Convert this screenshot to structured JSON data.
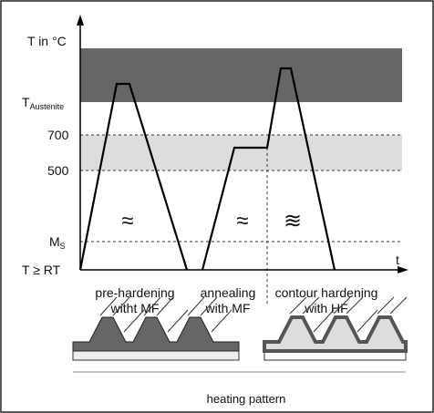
{
  "axis": {
    "y_label": "T in °C",
    "x_label": "t"
  },
  "y_labels": {
    "austenite": {
      "base": "T",
      "sub": "Austenite"
    },
    "t700": "700",
    "t500": "500",
    "ms": {
      "base": "M",
      "sub": "S"
    },
    "rt": "T ≥ RT"
  },
  "symbols": [
    "≈",
    "≈",
    "≋"
  ],
  "phases": [
    {
      "lines": [
        "pre-hardening",
        "witht MF"
      ]
    },
    {
      "lines": [
        "annealing",
        "with MF"
      ]
    },
    {
      "lines": [
        "contour hardening",
        "with HF"
      ]
    }
  ],
  "footer": "heating pattern"
}
